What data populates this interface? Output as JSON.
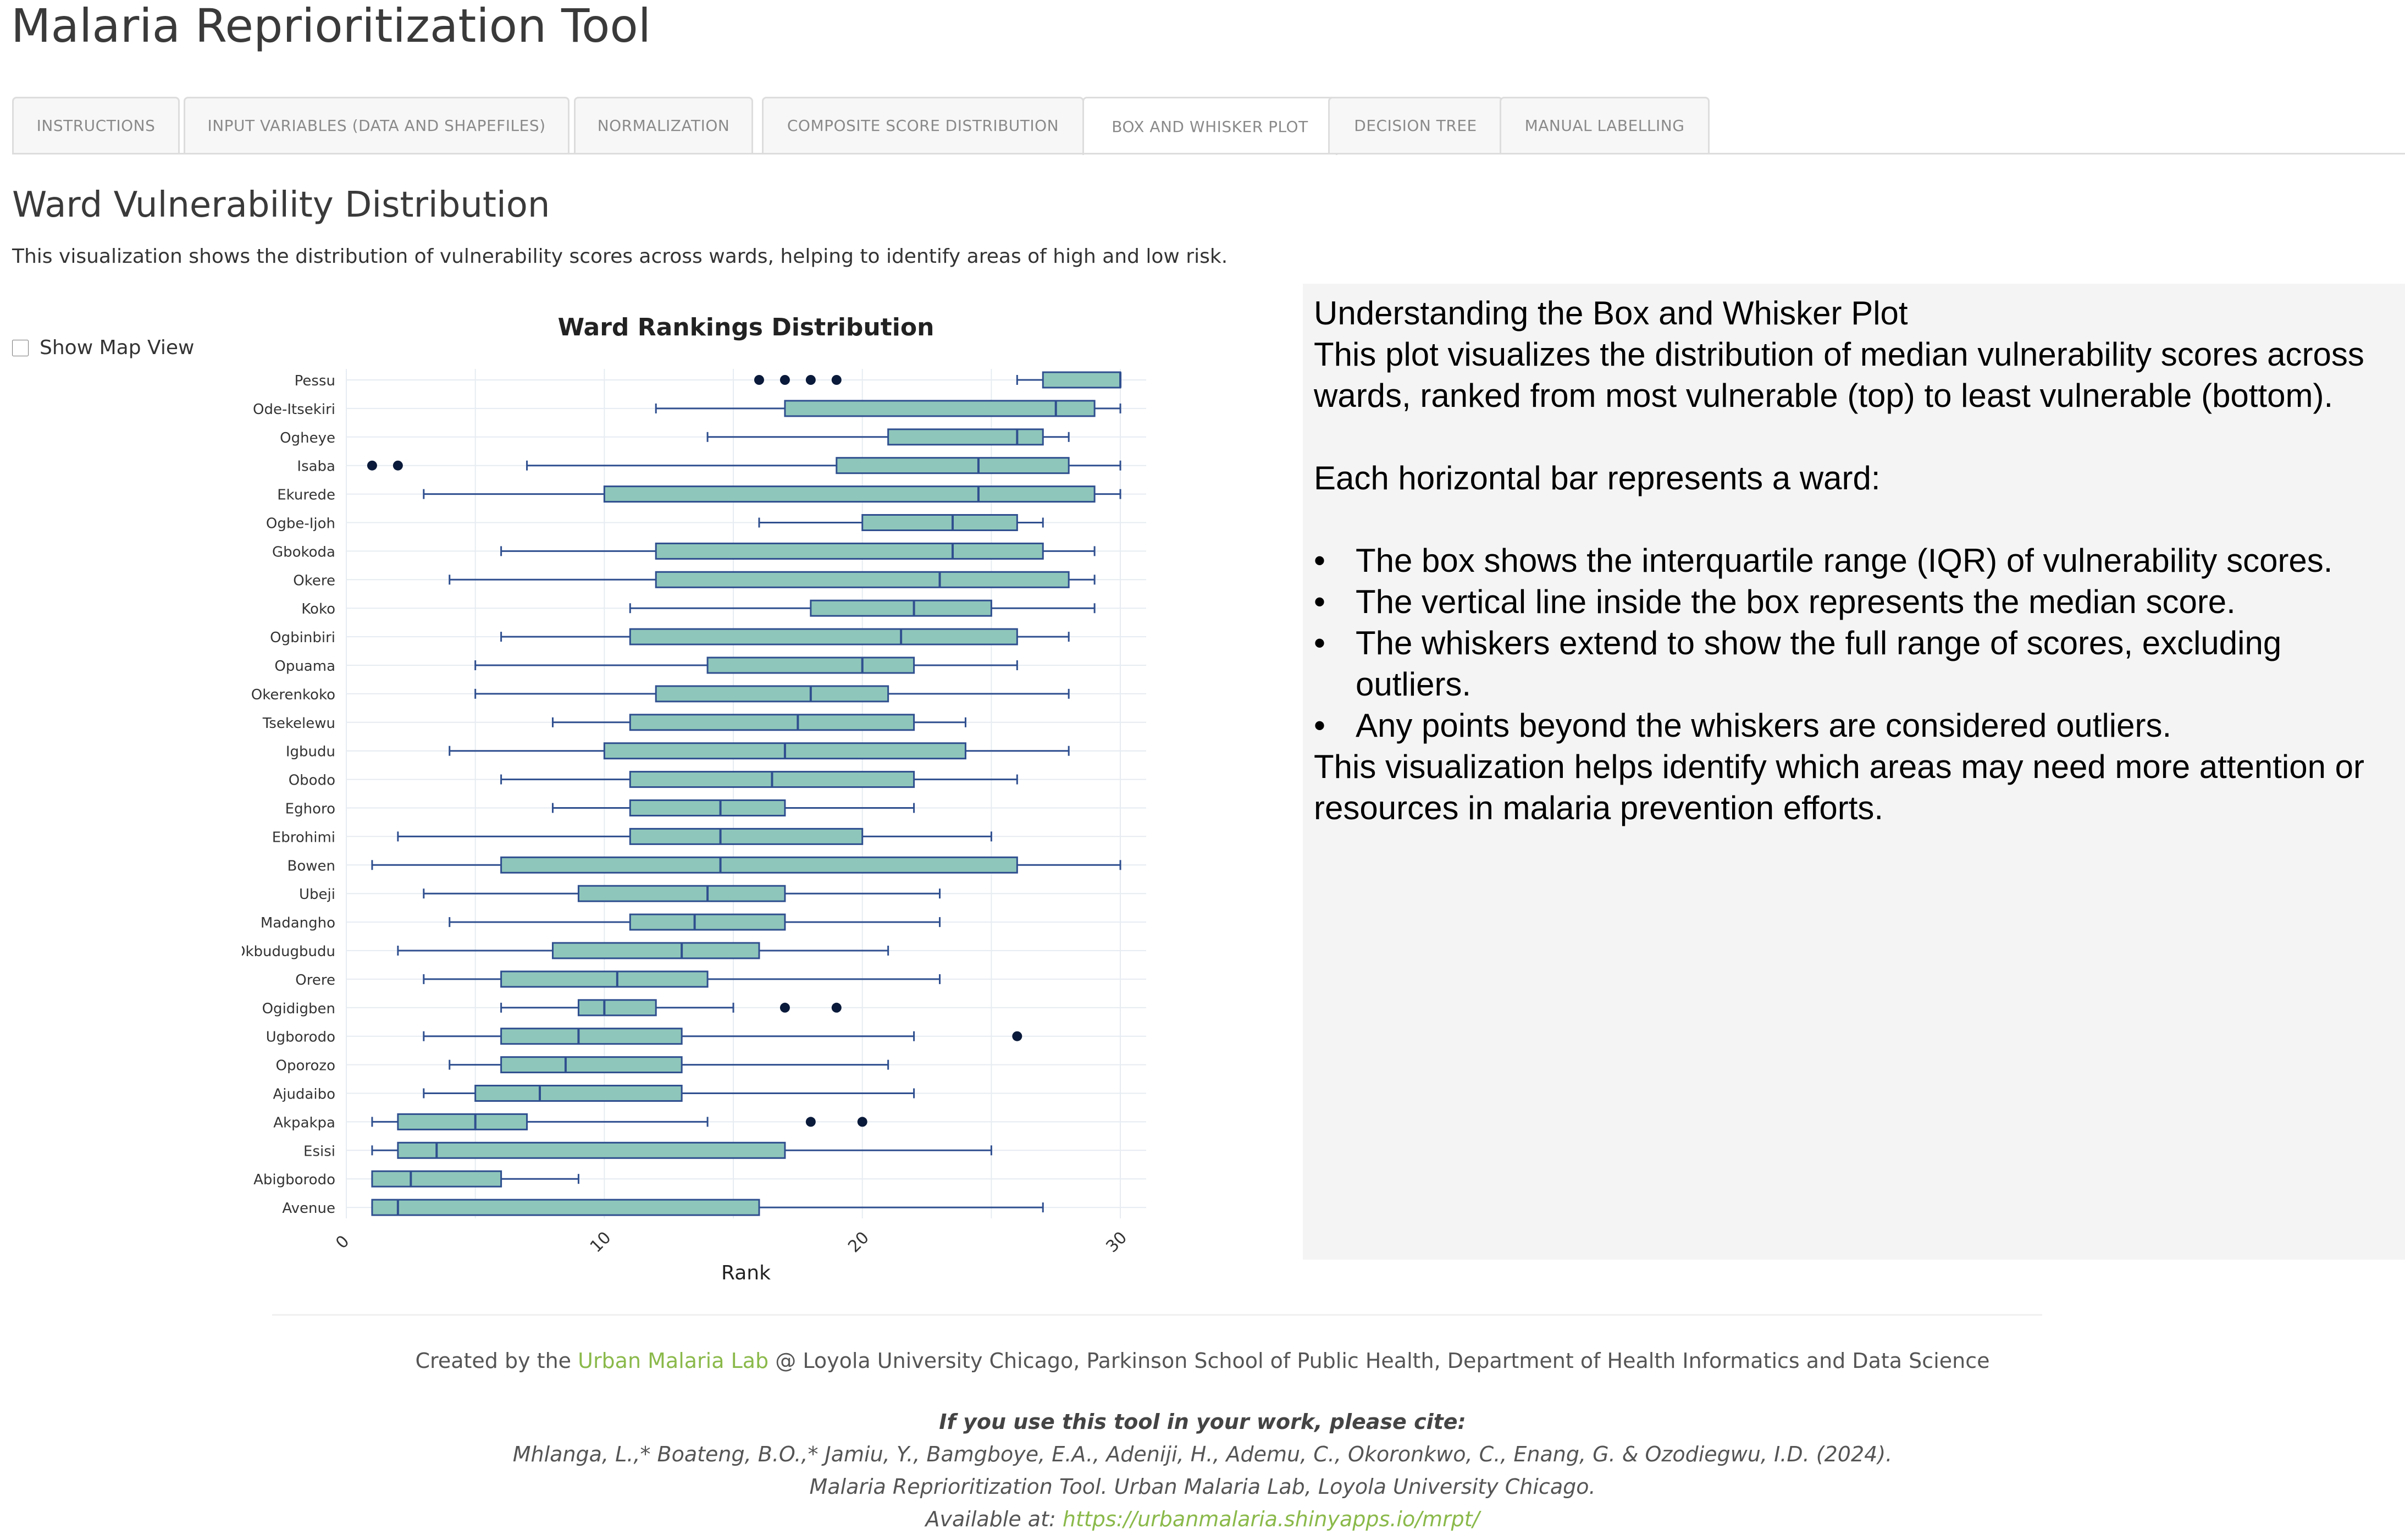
{
  "app_title": "Malaria Reprioritization Tool",
  "tabs": [
    {
      "label": "Instructions",
      "active": false
    },
    {
      "label": "Input Variables (Data and Shapefiles)",
      "active": false
    },
    {
      "label": "Normalization",
      "active": false
    },
    {
      "label": "Composite Score Distribution",
      "active": false
    },
    {
      "label": "Box and Whisker Plot",
      "active": true
    },
    {
      "label": "Decision Tree",
      "active": false
    },
    {
      "label": "Manual Labelling",
      "active": false
    }
  ],
  "section": {
    "title": "Ward Vulnerability Distribution",
    "description": "This visualization shows the distribution of vulnerability scores across wards, helping to identify areas of high and low risk."
  },
  "map_toggle": {
    "label": "Show Map View",
    "checked": false
  },
  "chart_data": {
    "type": "box",
    "orientation": "horizontal",
    "title": "Ward Rankings Distribution",
    "xlabel": "Rank",
    "ylabel": "",
    "xlim": [
      0,
      31
    ],
    "xticks": [
      0,
      10,
      20,
      30
    ],
    "colors": {
      "box_fill": "#8fc6bb",
      "box_line": "#2f4f8f",
      "outlier": "#0a1a3a",
      "grid": "#e6ecf2"
    },
    "categories": [
      "Pessu",
      "Ode-Itsekiri",
      "Ogheye",
      "Isaba",
      "Ekurede",
      "Ogbe-Ijoh",
      "Gbokoda",
      "Okere",
      "Koko",
      "Ogbinbiri",
      "Opuama",
      "Okerenkoko",
      "Tsekelewu",
      "Igbudu",
      "Obodo",
      "Eghoro",
      "Ebrohimi",
      "Bowen",
      "Ubeji",
      "Madangho",
      "Okbudugbudu",
      "Orere",
      "Ogidigben",
      "Ugborodo",
      "Oporozo",
      "Ajudaibo",
      "Akpakpa",
      "Esisi",
      "Abigborodo",
      "Avenue"
    ],
    "boxes": [
      {
        "min": 26,
        "q1": 27,
        "median": 30,
        "q3": 30,
        "max": 30,
        "outliers": [
          16,
          17,
          18,
          19
        ]
      },
      {
        "min": 12,
        "q1": 17,
        "median": 27.5,
        "q3": 29,
        "max": 30,
        "outliers": []
      },
      {
        "min": 14,
        "q1": 21,
        "median": 26,
        "q3": 27,
        "max": 28,
        "outliers": []
      },
      {
        "min": 7,
        "q1": 19,
        "median": 24.5,
        "q3": 28,
        "max": 30,
        "outliers": [
          1,
          2
        ]
      },
      {
        "min": 3,
        "q1": 10,
        "median": 24.5,
        "q3": 29,
        "max": 30,
        "outliers": []
      },
      {
        "min": 16,
        "q1": 20,
        "median": 23.5,
        "q3": 26,
        "max": 27,
        "outliers": []
      },
      {
        "min": 6,
        "q1": 12,
        "median": 23.5,
        "q3": 27,
        "max": 29,
        "outliers": []
      },
      {
        "min": 4,
        "q1": 12,
        "median": 23,
        "q3": 28,
        "max": 29,
        "outliers": []
      },
      {
        "min": 11,
        "q1": 18,
        "median": 22,
        "q3": 25,
        "max": 29,
        "outliers": []
      },
      {
        "min": 6,
        "q1": 11,
        "median": 21.5,
        "q3": 26,
        "max": 28,
        "outliers": []
      },
      {
        "min": 5,
        "q1": 14,
        "median": 20,
        "q3": 22,
        "max": 26,
        "outliers": []
      },
      {
        "min": 5,
        "q1": 12,
        "median": 18,
        "q3": 21,
        "max": 28,
        "outliers": []
      },
      {
        "min": 8,
        "q1": 11,
        "median": 17.5,
        "q3": 22,
        "max": 24,
        "outliers": []
      },
      {
        "min": 4,
        "q1": 10,
        "median": 17,
        "q3": 24,
        "max": 28,
        "outliers": []
      },
      {
        "min": 6,
        "q1": 11,
        "median": 16.5,
        "q3": 22,
        "max": 26,
        "outliers": []
      },
      {
        "min": 8,
        "q1": 11,
        "median": 14.5,
        "q3": 17,
        "max": 22,
        "outliers": []
      },
      {
        "min": 2,
        "q1": 11,
        "median": 14.5,
        "q3": 20,
        "max": 25,
        "outliers": []
      },
      {
        "min": 1,
        "q1": 6,
        "median": 14.5,
        "q3": 26,
        "max": 30,
        "outliers": []
      },
      {
        "min": 3,
        "q1": 9,
        "median": 14,
        "q3": 17,
        "max": 23,
        "outliers": []
      },
      {
        "min": 4,
        "q1": 11,
        "median": 13.5,
        "q3": 17,
        "max": 23,
        "outliers": []
      },
      {
        "min": 2,
        "q1": 8,
        "median": 13,
        "q3": 16,
        "max": 21,
        "outliers": []
      },
      {
        "min": 3,
        "q1": 6,
        "median": 10.5,
        "q3": 14,
        "max": 23,
        "outliers": []
      },
      {
        "min": 6,
        "q1": 9,
        "median": 10,
        "q3": 12,
        "max": 15,
        "outliers": [
          17,
          19
        ]
      },
      {
        "min": 3,
        "q1": 6,
        "median": 9,
        "q3": 13,
        "max": 22,
        "outliers": [
          26
        ]
      },
      {
        "min": 4,
        "q1": 6,
        "median": 8.5,
        "q3": 13,
        "max": 21,
        "outliers": []
      },
      {
        "min": 3,
        "q1": 5,
        "median": 7.5,
        "q3": 13,
        "max": 22,
        "outliers": []
      },
      {
        "min": 1,
        "q1": 2,
        "median": 5,
        "q3": 7,
        "max": 14,
        "outliers": [
          18,
          20
        ]
      },
      {
        "min": 1,
        "q1": 2,
        "median": 3.5,
        "q3": 17,
        "max": 25,
        "outliers": []
      },
      {
        "min": 1,
        "q1": 1,
        "median": 2.5,
        "q3": 6,
        "max": 9,
        "outliers": []
      },
      {
        "min": 1,
        "q1": 1,
        "median": 2,
        "q3": 16,
        "max": 27,
        "outliers": []
      }
    ]
  },
  "info": {
    "title": "Understanding the Box and Whisker Plot",
    "intro": "This plot visualizes the distribution of median vulnerability scores across wards, ranked from most vulnerable (top) to least vulnerable (bottom).",
    "bar_intro": "Each horizontal bar represents a ward:",
    "bullets": [
      "The box shows the interquartile range (IQR) of vulnerability scores.",
      "The vertical line inside the box represents the median score.",
      "The whiskers extend to show the full range of scores, excluding outliers.",
      "Any points beyond the whiskers are considered outliers."
    ],
    "conclusion": "This visualization helps identify which areas may need more attention or resources in malaria prevention efforts."
  },
  "footer": {
    "created_prefix": "Created by the",
    "lab_link": "Urban Malaria Lab",
    "created_suffix": "@ Loyola University Chicago, Parkinson School of Public Health, Department of Health Informatics and Data Science",
    "cite_heading": "If you use this tool in your work, please cite:",
    "cite_authors": "Mhlanga, L.,* Boateng, B.O.,* Jamiu, Y., Bamgboye, E.A., Adeniji, H., Ademu, C., Okoronkwo, C., Enang, G. & Ozodiegwu, I.D. (2024).",
    "cite_title": "Malaria Reprioritization Tool. Urban Malaria Lab, Loyola University Chicago.",
    "available_prefix": "Available at:",
    "available_url": "https://urbanmalaria.shinyapps.io/mrpt/"
  }
}
